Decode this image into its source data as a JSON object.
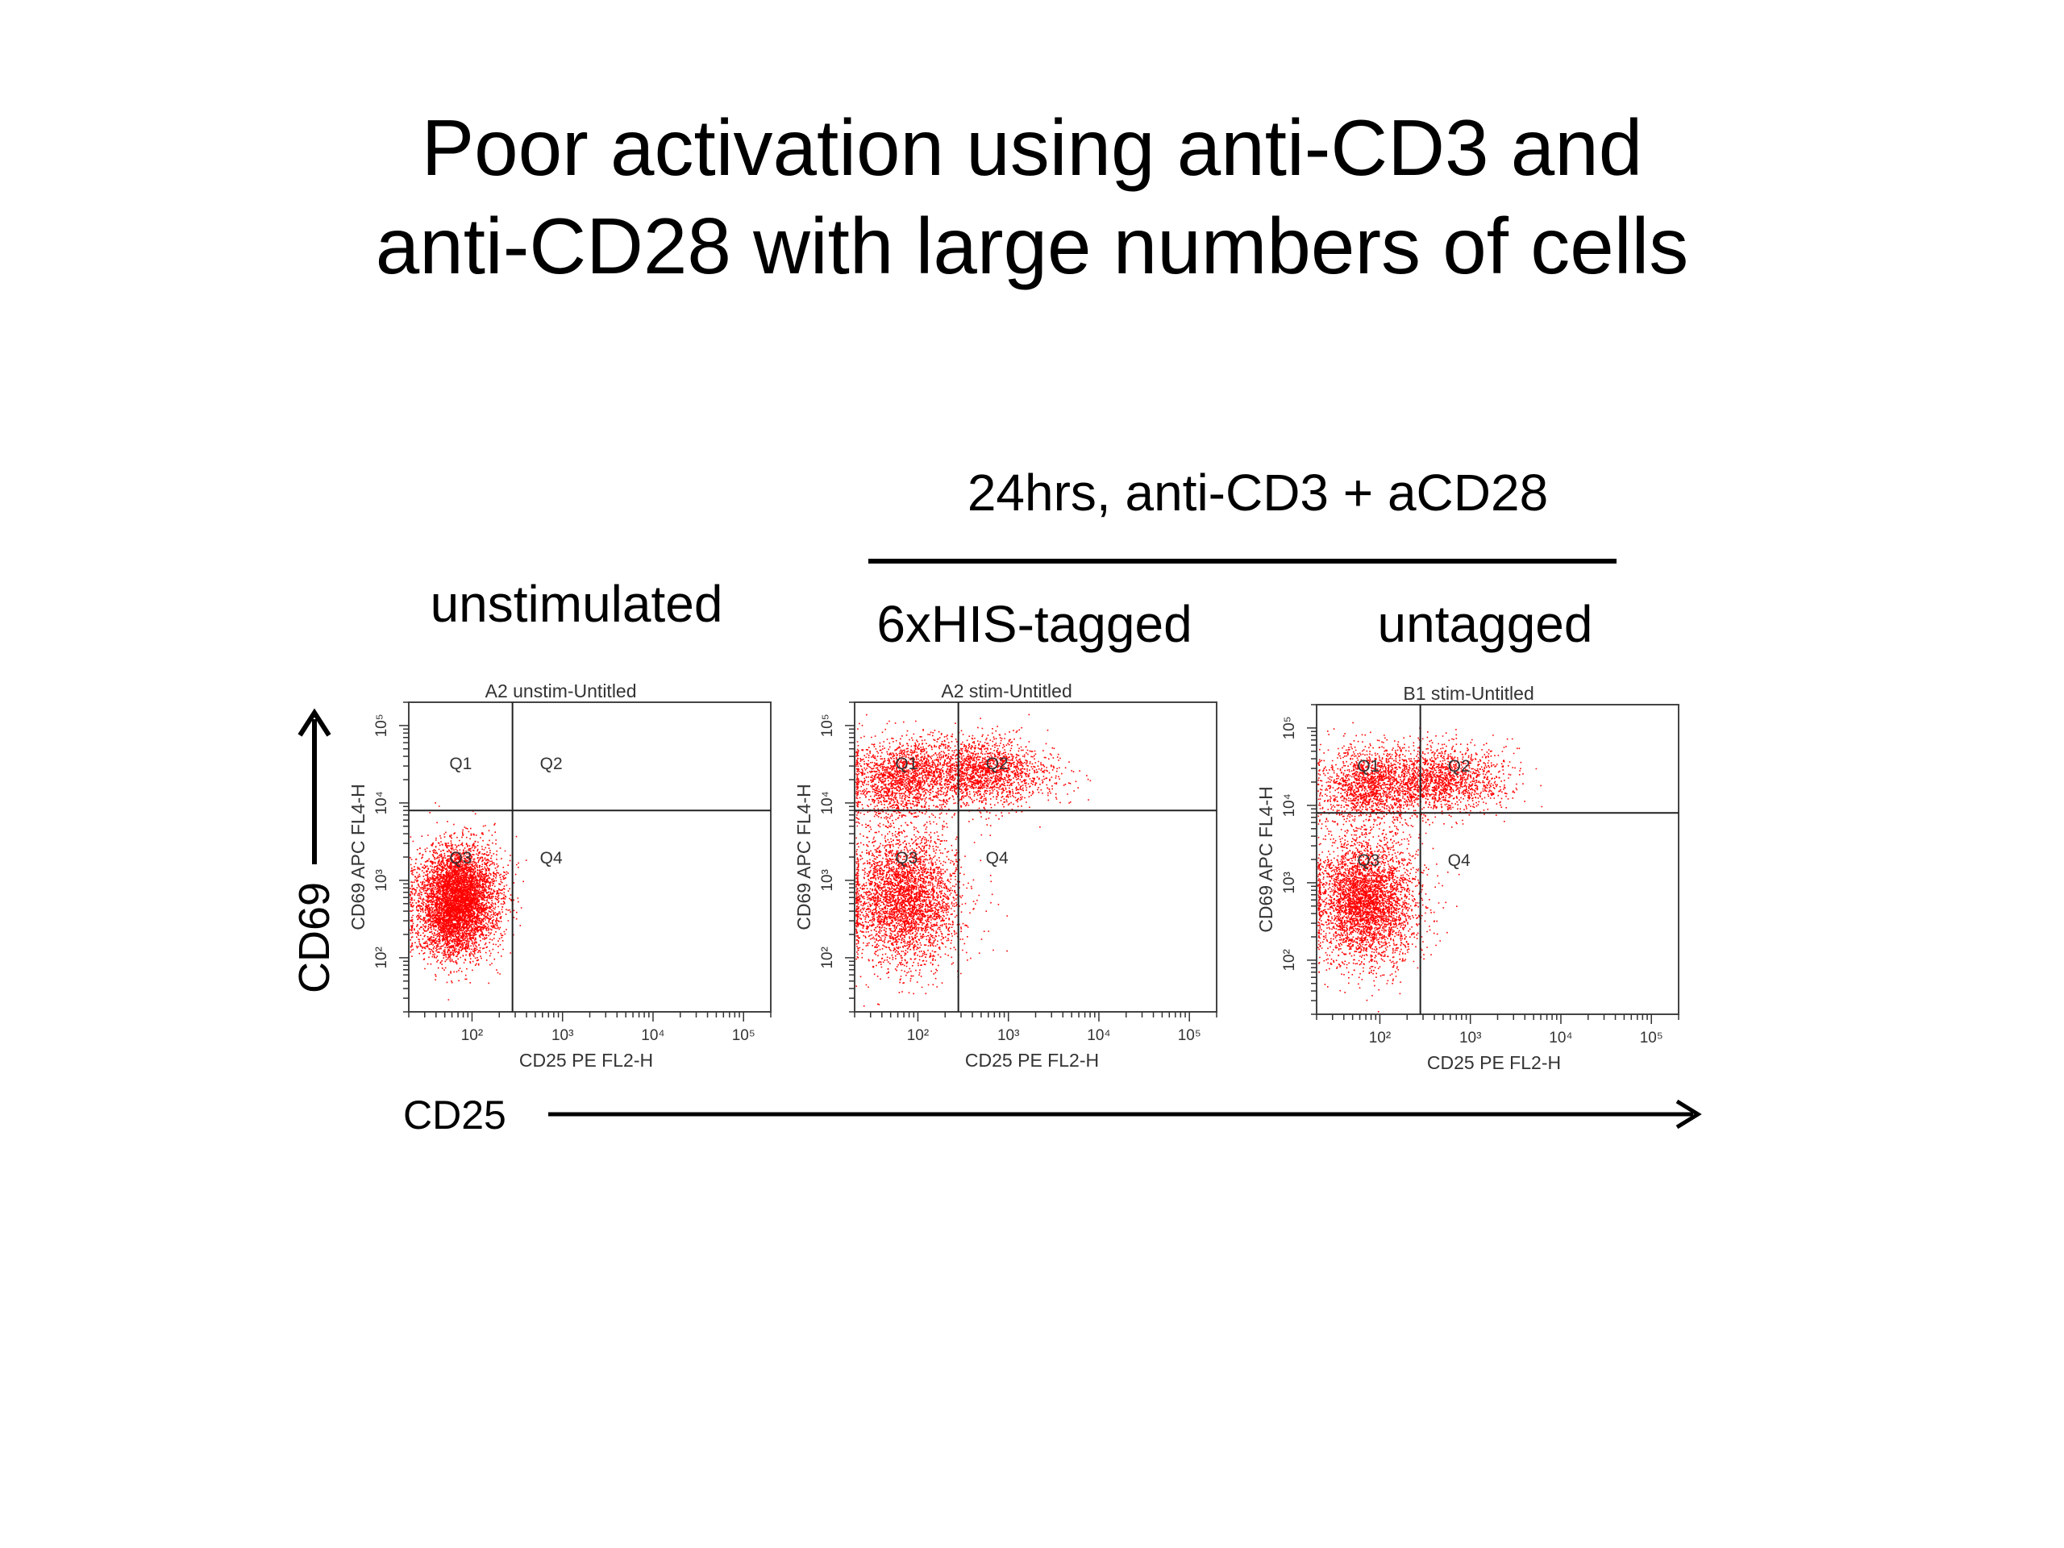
{
  "slide": {
    "title_line1": "Poor activation using anti-CD3 and",
    "title_line2": "anti-CD28 with large numbers of cells",
    "stim_label": "24hrs, anti-CD3 + aCD28",
    "conditions": [
      "unstimulated",
      "6xHIS-tagged",
      "untagged"
    ],
    "y_arrow_label": "CD69",
    "x_arrow_label": "CD25"
  },
  "chart_data": [
    {
      "type": "scatter",
      "title": "A2 unstim-Untitled",
      "xlabel": "CD25 PE FL2-H",
      "ylabel": "CD69 APC FL4-H",
      "x_scale": "log",
      "y_scale": "log",
      "xlim": [
        20,
        200000
      ],
      "ylim": [
        20,
        200000
      ],
      "x_ticks": [
        "10²",
        "10³",
        "10⁴",
        "10⁵"
      ],
      "y_ticks": [
        "10²",
        "10³",
        "10⁴",
        "10⁵"
      ],
      "color": "#ff0000",
      "quadrant_gate": {
        "x": 280,
        "y": 8000
      },
      "quadrants": [
        "Q1",
        "Q2",
        "Q3",
        "Q4"
      ],
      "populations": [
        {
          "center": [
            70,
            600
          ],
          "spread_log10": [
            0.22,
            0.34
          ],
          "count": 5200
        },
        {
          "center": [
            50,
            250
          ],
          "spread_log10": [
            0.15,
            0.2
          ],
          "count": 500
        }
      ]
    },
    {
      "type": "scatter",
      "title": "A2 stim-Untitled",
      "xlabel": "CD25 PE FL2-H",
      "ylabel": "CD69 APC FL4-H",
      "x_scale": "log",
      "y_scale": "log",
      "xlim": [
        20,
        200000
      ],
      "ylim": [
        20,
        200000
      ],
      "x_ticks": [
        "10²",
        "10³",
        "10⁴",
        "10⁵"
      ],
      "y_ticks": [
        "10²",
        "10³",
        "10⁴",
        "10⁵"
      ],
      "color": "#ff0000",
      "quadrant_gate": {
        "x": 280,
        "y": 8000
      },
      "quadrants": [
        "Q1",
        "Q2",
        "Q3",
        "Q4"
      ],
      "populations": [
        {
          "center": [
            70,
            600
          ],
          "spread_log10": [
            0.3,
            0.42
          ],
          "count": 3600
        },
        {
          "center": [
            60,
            20000
          ],
          "spread_log10": [
            0.28,
            0.25
          ],
          "count": 1600
        },
        {
          "center": [
            500,
            25000
          ],
          "spread_log10": [
            0.38,
            0.22
          ],
          "count": 2000
        }
      ]
    },
    {
      "type": "scatter",
      "title": "B1 stim-Untitled",
      "xlabel": "CD25 PE FL2-H",
      "ylabel": "CD69 APC FL4-H",
      "x_scale": "log",
      "y_scale": "log",
      "xlim": [
        20,
        200000
      ],
      "ylim": [
        20,
        200000
      ],
      "x_ticks": [
        "10²",
        "10³",
        "10⁴",
        "10⁵"
      ],
      "y_ticks": [
        "10²",
        "10³",
        "10⁴",
        "10⁵"
      ],
      "color": "#ff0000",
      "quadrant_gate": {
        "x": 280,
        "y": 8000
      },
      "quadrants": [
        "Q1",
        "Q2",
        "Q3",
        "Q4"
      ],
      "populations": [
        {
          "center": [
            70,
            600
          ],
          "spread_log10": [
            0.28,
            0.4
          ],
          "count": 3900
        },
        {
          "center": [
            70,
            18000
          ],
          "spread_log10": [
            0.26,
            0.25
          ],
          "count": 1400
        },
        {
          "center": [
            450,
            22000
          ],
          "spread_log10": [
            0.36,
            0.22
          ],
          "count": 1700
        }
      ]
    }
  ]
}
